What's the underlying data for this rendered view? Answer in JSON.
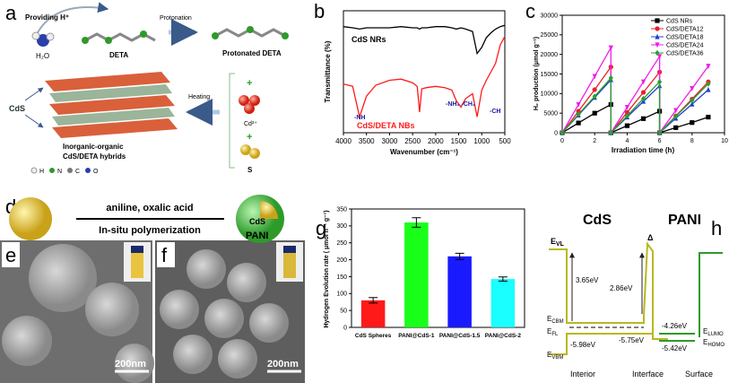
{
  "chart_data": [
    {
      "type": "line",
      "xlabel": "Wavenumber (cm⁻¹)",
      "ylabel": "Transmittance (%)",
      "x": [
        4000,
        3800,
        3650,
        3500,
        3300,
        3000,
        2750,
        2500,
        2400,
        2350,
        2300,
        2200,
        2000,
        1800,
        1650,
        1550,
        1450,
        1350,
        1200,
        1100,
        1000,
        900,
        800,
        700,
        600,
        500
      ],
      "xlim": [
        4000,
        500
      ],
      "xticks": [
        4000,
        3500,
        3000,
        2500,
        2000,
        1500,
        1000,
        500
      ],
      "ylim": [
        0,
        100
      ],
      "series": [
        {
          "name": "CdS NRs",
          "color": "#000000",
          "values": [
            87,
            86,
            85,
            86,
            86,
            86,
            87,
            86,
            86,
            85,
            86,
            86,
            87,
            87,
            86,
            85,
            86,
            85,
            83,
            65,
            70,
            78,
            82,
            85,
            87,
            88
          ]
        },
        {
          "name": "CdS/DETA NBs",
          "color": "#ff1a1a",
          "values": [
            40,
            38,
            13,
            30,
            39,
            43,
            44,
            41,
            38,
            17,
            36,
            37,
            38,
            37,
            35,
            26,
            21,
            28,
            32,
            13,
            35,
            43,
            50,
            57,
            72,
            79
          ]
        }
      ],
      "annotations": [
        {
          "text": "CdS NRs",
          "color": "#000000"
        },
        {
          "text": "CdS/DETA NBs",
          "color": "#ff1a1a"
        },
        {
          "text": "-NH",
          "color": "#1a1aa0"
        },
        {
          "text": "-NH₂ -CH₂",
          "color": "#1a1aa0"
        },
        {
          "text": "-CH",
          "color": "#1a1aa0"
        }
      ]
    },
    {
      "type": "line",
      "xlabel": "Irradiation time (h)",
      "ylabel": "H₂ production (μmol g⁻¹)",
      "x": [
        0,
        1,
        2,
        3,
        3,
        4,
        5,
        6,
        6,
        7,
        8,
        9
      ],
      "xlim": [
        0,
        10
      ],
      "xticks": [
        0,
        2,
        4,
        6,
        8,
        10
      ],
      "ylim": [
        0,
        30000
      ],
      "yticks": [
        0,
        5000,
        10000,
        15000,
        20000,
        25000,
        30000
      ],
      "legend": "upper right",
      "series": [
        {
          "name": "CdS NRs",
          "color": "#000000",
          "marker": "square",
          "values": [
            0,
            2500,
            5000,
            7200,
            0,
            1800,
            3600,
            5500,
            0,
            1300,
            2600,
            4000
          ]
        },
        {
          "name": "CdS/DETA12",
          "color": "#e8202a",
          "marker": "circle",
          "values": [
            0,
            5500,
            11000,
            16800,
            0,
            5200,
            10300,
            15500,
            0,
            4300,
            8600,
            13000
          ]
        },
        {
          "name": "CdS/DETA18",
          "color": "#1f3fd6",
          "marker": "triangle-up",
          "values": [
            0,
            4500,
            9000,
            13500,
            0,
            4000,
            8000,
            12000,
            0,
            3700,
            7300,
            11000
          ]
        },
        {
          "name": "CdS/DETA24",
          "color": "#ee1ee8",
          "marker": "triangle-down",
          "values": [
            0,
            7200,
            14400,
            21700,
            0,
            6500,
            13000,
            19500,
            0,
            5700,
            11300,
            17000
          ]
        },
        {
          "name": "CdS/DETA36",
          "color": "#2aa02a",
          "marker": "diamond",
          "values": [
            0,
            4700,
            9300,
            14000,
            0,
            4300,
            8700,
            13000,
            0,
            4200,
            8300,
            12500
          ]
        }
      ]
    },
    {
      "type": "bar",
      "ylabel": "Hydrogen Evolution rate ( μmol h⁻¹ g⁻¹)",
      "categories": [
        "CdS Spheres",
        "PANI@CdS-1",
        "PANI@CdS-1.5",
        "PANI@CdS-2"
      ],
      "values": [
        80,
        310,
        210,
        143
      ],
      "errors": [
        8,
        14,
        9,
        6
      ],
      "colors": [
        "#ff1a1a",
        "#1aff1a",
        "#1a1aff",
        "#1affff"
      ],
      "ylim": [
        0,
        350
      ],
      "yticks": [
        0,
        50,
        100,
        150,
        200,
        250,
        300,
        350
      ]
    }
  ],
  "panels": {
    "labels": [
      "a",
      "b",
      "c",
      "d",
      "e",
      "f",
      "g",
      "h"
    ],
    "a": {
      "providing": "Providing H⁺",
      "protonation": "Protonation",
      "water": "H₂O",
      "deta": "DETA",
      "protonated": "Protonated DETA",
      "heating": "Heating",
      "cds": "CdS",
      "hybrids": [
        "Inorganic-organic",
        "CdS/DETA hybrids"
      ],
      "cd": "Cd²⁺",
      "s": "S",
      "plus": "+",
      "atoms": [
        "H",
        "N",
        "C",
        "O"
      ]
    },
    "d": {
      "reagents": "aniline, oxalic acid",
      "method": "In-situ polymerization",
      "core": "CdS",
      "shell": "PANI"
    },
    "scale_bar": "200nm",
    "h": {
      "titles": [
        "CdS",
        "PANI"
      ],
      "vl": [
        "E",
        "VL"
      ],
      "delta": "Δ",
      "gap1": "3.65eV",
      "gap2": "2.86eV",
      "cbm": [
        "E",
        "CBM"
      ],
      "fl": [
        "E",
        "FL"
      ],
      "vbm": [
        "E",
        "VBM"
      ],
      "vbm_value": "-5.98eV",
      "interface_value": "-5.75eV",
      "lumo_value": "-4.26eV",
      "homo_value": "-5.42eV",
      "lumo": [
        "E",
        "LUMO"
      ],
      "homo": [
        "E",
        "HOMO"
      ],
      "regions": [
        "Interior",
        "Interface",
        "Surface"
      ]
    }
  }
}
